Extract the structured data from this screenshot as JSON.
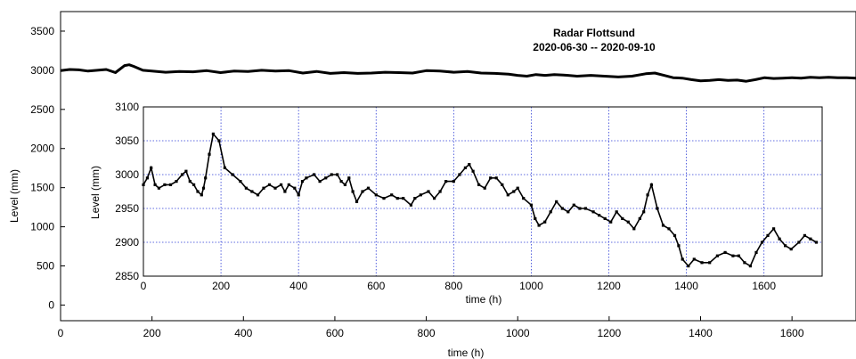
{
  "chart_data": [
    {
      "type": "line",
      "title": "Radar Flottsund",
      "subtitle": "2020-06-30 -- 2020-09-10",
      "xlabel": "time (h)",
      "ylabel": "Level (mm)",
      "xlim": [
        0,
        1740
      ],
      "ylim": [
        -200,
        3750
      ],
      "xticks": [
        0,
        200,
        400,
        600,
        800,
        1000,
        1200,
        1400,
        1600
      ],
      "yticks": [
        0,
        500,
        1000,
        1500,
        2000,
        2500,
        3000,
        3500
      ],
      "grid": false,
      "series": [
        {
          "x": [
            0,
            20,
            40,
            60,
            80,
            100,
            120,
            140,
            150,
            160,
            180,
            200,
            230,
            260,
            290,
            320,
            350,
            380,
            410,
            440,
            470,
            500,
            530,
            560,
            590,
            620,
            650,
            680,
            710,
            740,
            770,
            800,
            830,
            860,
            890,
            920,
            950,
            980,
            1000,
            1020,
            1040,
            1060,
            1080,
            1100,
            1130,
            1160,
            1190,
            1220,
            1250,
            1280,
            1300,
            1320,
            1340,
            1360,
            1380,
            1400,
            1420,
            1440,
            1460,
            1480,
            1500,
            1520,
            1540,
            1560,
            1580,
            1600,
            1620,
            1640,
            1660,
            1680,
            1700,
            1720,
            1740
          ],
          "values": [
            2995,
            3010,
            3005,
            2990,
            3000,
            3010,
            2970,
            3060,
            3070,
            3050,
            3000,
            2990,
            2975,
            2985,
            2980,
            2995,
            2970,
            2990,
            2985,
            3000,
            2990,
            2995,
            2965,
            2985,
            2960,
            2970,
            2960,
            2965,
            2975,
            2970,
            2965,
            2995,
            2990,
            2975,
            2985,
            2965,
            2960,
            2950,
            2935,
            2925,
            2945,
            2935,
            2945,
            2940,
            2925,
            2935,
            2925,
            2915,
            2925,
            2955,
            2965,
            2935,
            2905,
            2900,
            2880,
            2865,
            2870,
            2880,
            2870,
            2875,
            2860,
            2880,
            2905,
            2895,
            2900,
            2905,
            2900,
            2910,
            2905,
            2910,
            2905,
            2905,
            2900
          ]
        }
      ]
    },
    {
      "type": "scatter",
      "xlabel": "time (h)",
      "ylabel": "Level (mm)",
      "xlim": [
        0,
        1750
      ],
      "ylim": [
        2850,
        3100
      ],
      "xticks": [
        0,
        200,
        400,
        600,
        800,
        1000,
        1200,
        1400,
        1600
      ],
      "yticks": [
        2850,
        2900,
        2950,
        3000,
        3050,
        3100
      ],
      "grid": true,
      "series": [
        {
          "x": [
            0,
            10,
            20,
            30,
            40,
            55,
            70,
            85,
            100,
            110,
            120,
            130,
            140,
            150,
            155,
            160,
            170,
            180,
            195,
            210,
            230,
            250,
            265,
            280,
            295,
            310,
            325,
            340,
            355,
            365,
            375,
            390,
            400,
            410,
            420,
            440,
            455,
            470,
            485,
            500,
            510,
            520,
            530,
            540,
            550,
            565,
            580,
            600,
            620,
            640,
            655,
            670,
            690,
            700,
            715,
            735,
            750,
            765,
            780,
            800,
            815,
            830,
            840,
            850,
            865,
            880,
            895,
            910,
            925,
            940,
            955,
            965,
            980,
            1000,
            1010,
            1020,
            1035,
            1050,
            1065,
            1080,
            1095,
            1110,
            1125,
            1140,
            1160,
            1175,
            1190,
            1205,
            1220,
            1235,
            1250,
            1265,
            1280,
            1290,
            1300,
            1310,
            1325,
            1340,
            1355,
            1370,
            1380,
            1390,
            1405,
            1420,
            1440,
            1460,
            1480,
            1500,
            1520,
            1535,
            1550,
            1565,
            1580,
            1595,
            1610,
            1625,
            1640,
            1655,
            1670,
            1690,
            1705,
            1720,
            1735
          ],
          "values": [
            2985,
            2995,
            3010,
            2985,
            2980,
            2985,
            2985,
            2990,
            3000,
            3005,
            2990,
            2985,
            2975,
            2970,
            2980,
            2995,
            3030,
            3060,
            3050,
            3010,
            3000,
            2990,
            2980,
            2975,
            2970,
            2980,
            2985,
            2980,
            2985,
            2975,
            2985,
            2980,
            2970,
            2990,
            2995,
            3000,
            2990,
            2995,
            3000,
            3000,
            2990,
            2985,
            2995,
            2975,
            2960,
            2975,
            2980,
            2970,
            2965,
            2970,
            2965,
            2965,
            2955,
            2965,
            2970,
            2975,
            2965,
            2975,
            2990,
            2990,
            3000,
            3010,
            3015,
            3005,
            2985,
            2980,
            2995,
            2995,
            2985,
            2970,
            2975,
            2980,
            2965,
            2955,
            2935,
            2925,
            2930,
            2945,
            2960,
            2950,
            2945,
            2955,
            2950,
            2950,
            2945,
            2940,
            2935,
            2930,
            2945,
            2935,
            2930,
            2920,
            2935,
            2945,
            2970,
            2985,
            2950,
            2925,
            2920,
            2910,
            2895,
            2875,
            2865,
            2875,
            2870,
            2870,
            2880,
            2885,
            2880,
            2880,
            2870,
            2865,
            2885,
            2900,
            2910,
            2920,
            2905,
            2895,
            2890,
            2900,
            2910,
            2905,
            2900
          ]
        }
      ]
    }
  ]
}
